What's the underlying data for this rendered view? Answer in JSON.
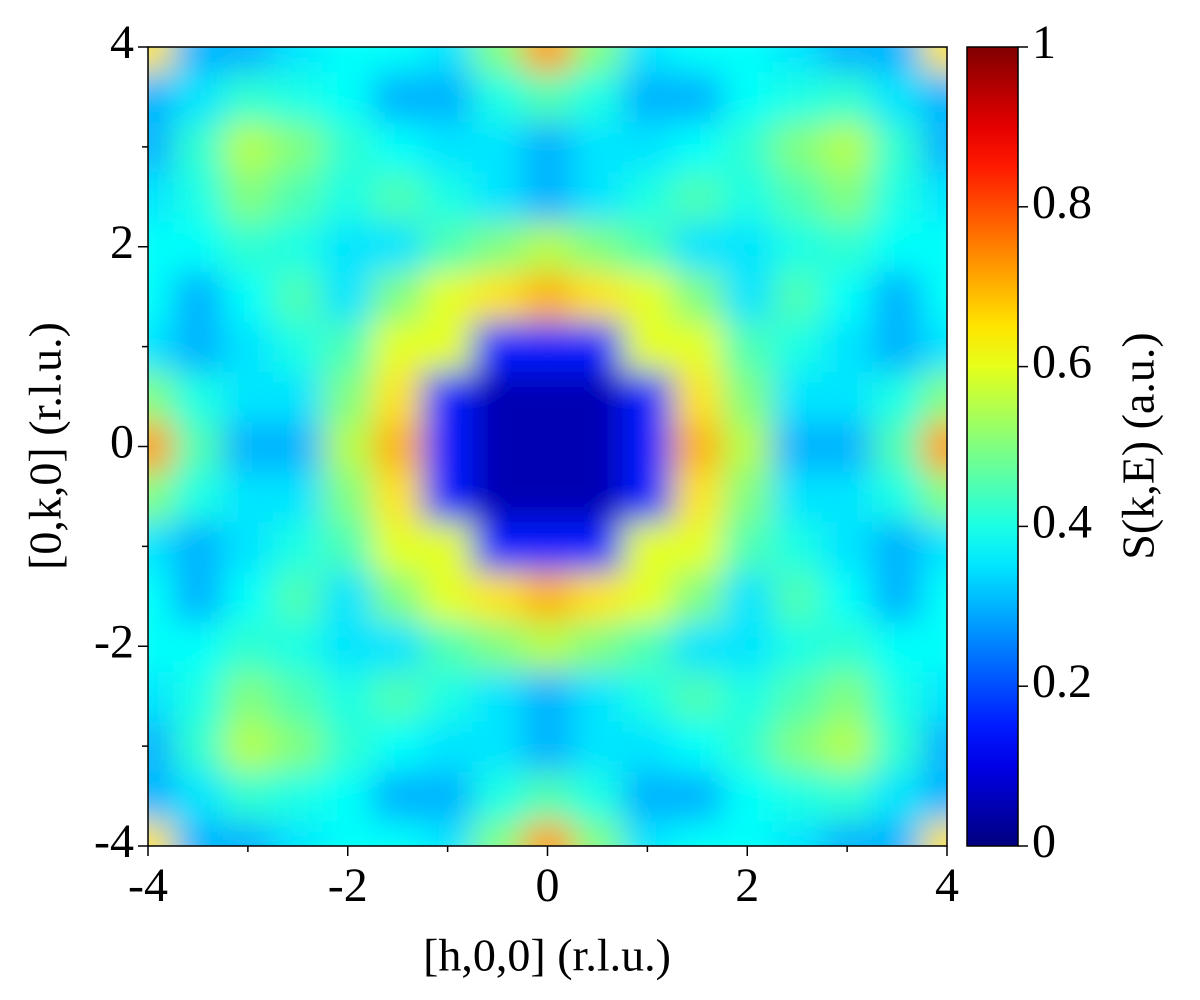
{
  "chart_data": {
    "type": "heatmap",
    "xlabel": "[h,0,0] (r.l.u.)",
    "ylabel": "[0,k,0] (r.l.u.)",
    "colorbar_label": "S(k,E) (a.u.)",
    "colormap": "jet",
    "x": [
      -4,
      -3.5,
      -3,
      -2.5,
      -2,
      -1.5,
      -1,
      -0.5,
      0,
      0.5,
      1,
      1.5,
      2,
      2.5,
      3,
      3.5,
      4
    ],
    "y": [
      -4,
      -3.5,
      -3,
      -2.5,
      -2,
      -1.5,
      -1,
      -0.5,
      0,
      0.5,
      1,
      1.5,
      2,
      2.5,
      3,
      3.5,
      4
    ],
    "z": [
      [
        0.65,
        0.3,
        0.3,
        0.35,
        0.38,
        0.38,
        0.35,
        0.5,
        0.72,
        0.5,
        0.35,
        0.38,
        0.38,
        0.35,
        0.3,
        0.3,
        0.65
      ],
      [
        0.3,
        0.35,
        0.42,
        0.4,
        0.38,
        0.3,
        0.3,
        0.4,
        0.45,
        0.4,
        0.3,
        0.3,
        0.38,
        0.4,
        0.42,
        0.35,
        0.3
      ],
      [
        0.3,
        0.42,
        0.55,
        0.5,
        0.42,
        0.38,
        0.35,
        0.35,
        0.3,
        0.35,
        0.35,
        0.38,
        0.42,
        0.5,
        0.55,
        0.42,
        0.3
      ],
      [
        0.35,
        0.4,
        0.5,
        0.45,
        0.4,
        0.45,
        0.4,
        0.35,
        0.3,
        0.35,
        0.4,
        0.45,
        0.4,
        0.45,
        0.5,
        0.4,
        0.35
      ],
      [
        0.38,
        0.38,
        0.42,
        0.4,
        0.35,
        0.35,
        0.45,
        0.5,
        0.55,
        0.5,
        0.45,
        0.35,
        0.35,
        0.4,
        0.42,
        0.38,
        0.38
      ],
      [
        0.38,
        0.3,
        0.38,
        0.45,
        0.35,
        0.5,
        0.6,
        0.65,
        0.7,
        0.65,
        0.6,
        0.5,
        0.35,
        0.45,
        0.38,
        0.3,
        0.38
      ],
      [
        0.35,
        0.3,
        0.35,
        0.4,
        0.45,
        0.6,
        0.6,
        0.15,
        0.15,
        0.15,
        0.6,
        0.6,
        0.45,
        0.4,
        0.35,
        0.3,
        0.35
      ],
      [
        0.5,
        0.4,
        0.35,
        0.35,
        0.5,
        0.65,
        0.15,
        0.05,
        0.05,
        0.05,
        0.15,
        0.65,
        0.5,
        0.35,
        0.35,
        0.4,
        0.5
      ],
      [
        0.72,
        0.45,
        0.3,
        0.3,
        0.55,
        0.7,
        0.15,
        0.05,
        0.05,
        0.05,
        0.15,
        0.7,
        0.55,
        0.3,
        0.3,
        0.45,
        0.72
      ],
      [
        0.5,
        0.4,
        0.35,
        0.35,
        0.5,
        0.65,
        0.15,
        0.05,
        0.05,
        0.05,
        0.15,
        0.65,
        0.5,
        0.35,
        0.35,
        0.4,
        0.5
      ],
      [
        0.35,
        0.3,
        0.35,
        0.4,
        0.45,
        0.6,
        0.6,
        0.15,
        0.15,
        0.15,
        0.6,
        0.6,
        0.45,
        0.4,
        0.35,
        0.3,
        0.35
      ],
      [
        0.38,
        0.3,
        0.38,
        0.45,
        0.35,
        0.5,
        0.6,
        0.65,
        0.7,
        0.65,
        0.6,
        0.5,
        0.35,
        0.45,
        0.38,
        0.3,
        0.38
      ],
      [
        0.38,
        0.38,
        0.42,
        0.4,
        0.35,
        0.35,
        0.45,
        0.5,
        0.55,
        0.5,
        0.45,
        0.35,
        0.35,
        0.4,
        0.42,
        0.38,
        0.38
      ],
      [
        0.35,
        0.4,
        0.5,
        0.45,
        0.4,
        0.45,
        0.4,
        0.35,
        0.3,
        0.35,
        0.4,
        0.45,
        0.4,
        0.45,
        0.5,
        0.4,
        0.35
      ],
      [
        0.3,
        0.42,
        0.55,
        0.5,
        0.42,
        0.38,
        0.35,
        0.35,
        0.3,
        0.35,
        0.35,
        0.38,
        0.42,
        0.5,
        0.55,
        0.42,
        0.3
      ],
      [
        0.3,
        0.35,
        0.42,
        0.4,
        0.38,
        0.3,
        0.3,
        0.4,
        0.45,
        0.4,
        0.3,
        0.3,
        0.38,
        0.4,
        0.42,
        0.35,
        0.3
      ],
      [
        0.65,
        0.3,
        0.3,
        0.35,
        0.38,
        0.38,
        0.35,
        0.5,
        0.72,
        0.5,
        0.35,
        0.38,
        0.38,
        0.35,
        0.3,
        0.3,
        0.65
      ]
    ],
    "xlim": [
      -4,
      4
    ],
    "ylim": [
      -4,
      4
    ],
    "xticks": [
      -4,
      -2,
      0,
      2,
      4
    ],
    "yticks": [
      -4,
      -2,
      0,
      2,
      4
    ],
    "xminor_ticks": [
      -3,
      -1,
      1,
      3
    ],
    "yminor_ticks": [
      -3,
      -1,
      1,
      3
    ],
    "clim": [
      0,
      1
    ],
    "cticks": [
      0,
      0.2,
      0.4,
      0.6,
      0.8,
      1
    ]
  }
}
